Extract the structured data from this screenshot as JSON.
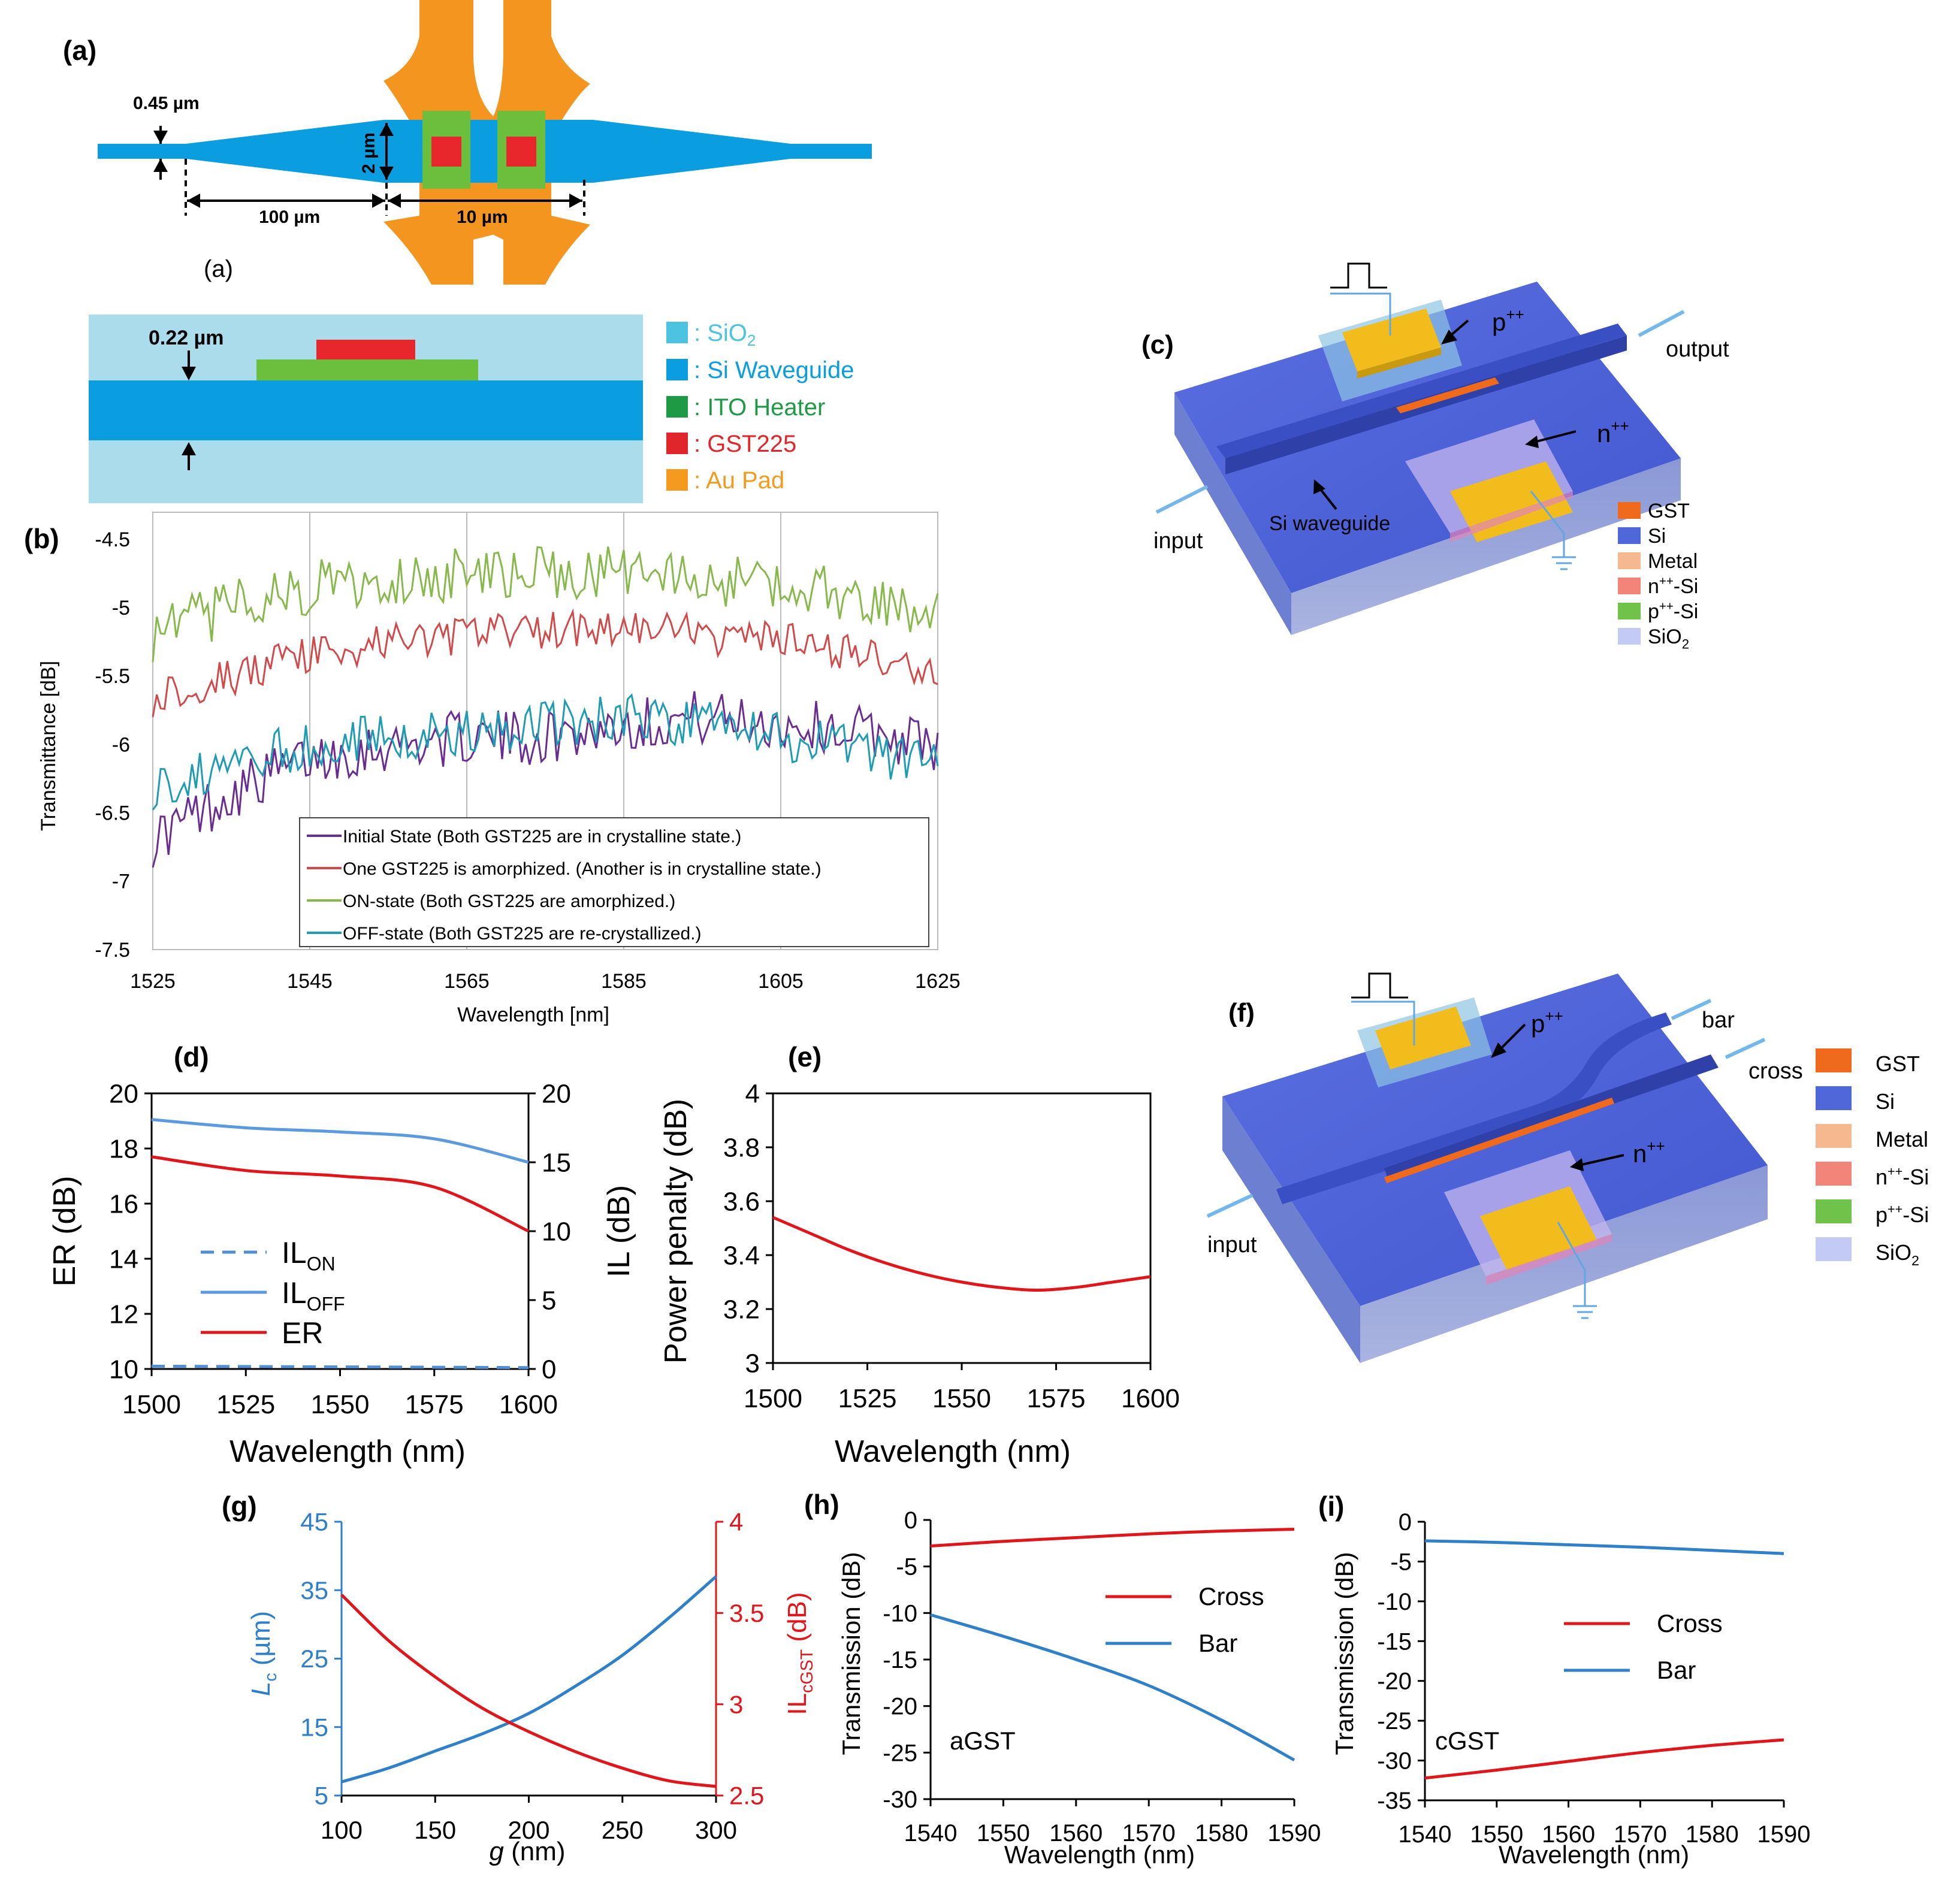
{
  "panel_a": {
    "label": "(a)",
    "sublabel": "(a)",
    "dims": {
      "width": "0.45 µm",
      "height": "2 µm",
      "taper": "100 µm",
      "gap": "10 µm",
      "thickness": "0.22 µm"
    },
    "legend": [
      {
        "label": ": SiO",
        "sub": "2",
        "color": "#4bc3e1"
      },
      {
        "label": ": Si Waveguide",
        "sub": "",
        "color": "#0a9ee0"
      },
      {
        "label": ": ITO Heater",
        "sub": "",
        "color": "#1e9a44"
      },
      {
        "label": ": GST225",
        "sub": "",
        "color": "#e0262b"
      },
      {
        "label": ": Au Pad",
        "sub": "",
        "color": "#f39a1f"
      }
    ],
    "colors": {
      "sio2": "#aadcec",
      "si": "#0a9ee0",
      "ito": "#6cbf3c",
      "gst": "#e8272c",
      "au": "#f3951f"
    }
  },
  "panel_c": {
    "label": "(c)",
    "annotations": {
      "p": "p",
      "n": "n",
      "output": "output",
      "input": "input",
      "waveguide": "Si waveguide"
    },
    "legend": [
      {
        "label": "GST",
        "sub": "",
        "color": "#ef6a1c"
      },
      {
        "label": "Si",
        "sub": "",
        "color": "#4f67d8"
      },
      {
        "label": "Metal",
        "sub": "",
        "color": "#f6b98f"
      },
      {
        "label": "n",
        "sub": "-Si",
        "color": "#f3847a"
      },
      {
        "label": "p",
        "sub": "-Si",
        "color": "#6fc24a"
      },
      {
        "label": "SiO",
        "sub": "2",
        "color": "#c3cbf4"
      }
    ]
  },
  "panel_f": {
    "label": "(f)",
    "annotations": {
      "p": "p",
      "n": "n",
      "bar": "bar",
      "cross": "cross",
      "input": "input"
    },
    "legend": [
      {
        "label": "GST",
        "sub": "",
        "color": "#ef6a1c"
      },
      {
        "label": "Si",
        "sub": "",
        "color": "#4f67d8"
      },
      {
        "label": "Metal",
        "sub": "",
        "color": "#f6b98f"
      },
      {
        "label": "n",
        "sub": "-Si",
        "color": "#f3847a"
      },
      {
        "label": "p",
        "sub": "-Si",
        "color": "#6fc24a"
      },
      {
        "label": "SiO",
        "sub": "2",
        "color": "#c3cbf4"
      }
    ]
  },
  "superscript": "++",
  "chart_data": [
    {
      "id": "b",
      "label": "(b)",
      "type": "line",
      "xlabel": "Wavelength [nm]",
      "ylabel": "Transmittance [dB]",
      "xlim": [
        1525,
        1625
      ],
      "ylim": [
        -7.5,
        -4.5
      ],
      "xticks": [
        1525,
        1545,
        1565,
        1585,
        1605,
        1625
      ],
      "yticks": [
        -4.5,
        -5,
        -5.5,
        -6,
        -6.5,
        -7,
        -7.5
      ],
      "series": [
        {
          "name": "Initial State (Both GST225 are in crystalline state.)",
          "color": "#6a2c91",
          "x": [
            1525,
            1535,
            1545,
            1555,
            1565,
            1575,
            1585,
            1595,
            1605,
            1615,
            1625
          ],
          "values": [
            -6.7,
            -6.35,
            -6.1,
            -6.0,
            -5.95,
            -5.95,
            -5.85,
            -5.8,
            -5.85,
            -5.9,
            -6.0
          ],
          "noise": 0.2
        },
        {
          "name": "One GST225 is amorphized. (Another is in crystalline state.)",
          "color": "#d04a4a",
          "x": [
            1525,
            1535,
            1545,
            1555,
            1565,
            1575,
            1585,
            1595,
            1605,
            1615,
            1625
          ],
          "values": [
            -5.65,
            -5.5,
            -5.35,
            -5.25,
            -5.2,
            -5.15,
            -5.15,
            -5.2,
            -5.25,
            -5.35,
            -5.5
          ],
          "noise": 0.15
        },
        {
          "name": "ON-state (Both GST225 are amorphized.)",
          "color": "#86b84a",
          "x": [
            1525,
            1535,
            1545,
            1555,
            1565,
            1575,
            1585,
            1595,
            1605,
            1615,
            1625
          ],
          "values": [
            -5.2,
            -5.0,
            -4.85,
            -4.8,
            -4.75,
            -4.75,
            -4.75,
            -4.8,
            -4.85,
            -4.9,
            -5.05
          ],
          "noise": 0.2
        },
        {
          "name": "OFF-state (Both GST225 are re-crystallized.)",
          "color": "#1e9bb5",
          "x": [
            1525,
            1535,
            1545,
            1555,
            1565,
            1575,
            1585,
            1595,
            1605,
            1615,
            1625
          ],
          "values": [
            -6.3,
            -6.15,
            -6.0,
            -5.95,
            -5.9,
            -5.85,
            -5.8,
            -5.85,
            -5.95,
            -6.05,
            -6.15
          ],
          "noise": 0.18
        }
      ]
    },
    {
      "id": "d",
      "label": "(d)",
      "type": "line",
      "xlabel": "Wavelength (nm)",
      "ylabel": "ER (dB)",
      "y2label": "IL (dB)",
      "xlim": [
        1500,
        1600
      ],
      "ylim": [
        10,
        20
      ],
      "y2lim": [
        0,
        20
      ],
      "xticks": [
        1500,
        1525,
        1550,
        1575,
        1600
      ],
      "yticks": [
        10,
        12,
        14,
        16,
        18,
        20
      ],
      "y2ticks": [
        0,
        5,
        10,
        15,
        20
      ],
      "series": [
        {
          "name": "IL",
          "sub": "ON",
          "axis": "right",
          "style": "dashed",
          "color": "#4f8fd6",
          "x": [
            1500,
            1600
          ],
          "values": [
            0.2,
            0.1
          ]
        },
        {
          "name": "IL",
          "sub": "OFF",
          "axis": "right",
          "style": "solid",
          "color": "#5c9ae0",
          "x": [
            1500,
            1525,
            1550,
            1575,
            1600
          ],
          "values": [
            18.1,
            17.5,
            17.2,
            16.7,
            15.0
          ]
        },
        {
          "name": "ER",
          "sub": "",
          "axis": "left",
          "style": "solid",
          "color": "#e0161b",
          "x": [
            1500,
            1525,
            1550,
            1575,
            1600
          ],
          "values": [
            17.7,
            17.2,
            17.0,
            16.6,
            15.0
          ]
        }
      ]
    },
    {
      "id": "e",
      "label": "(e)",
      "type": "line",
      "xlabel": "Wavelength (nm)",
      "ylabel": "Power penalty (dB)",
      "xlim": [
        1500,
        1600
      ],
      "ylim": [
        3,
        4
      ],
      "xticks": [
        1500,
        1525,
        1550,
        1575,
        1600
      ],
      "yticks": [
        3,
        3.2,
        3.4,
        3.6,
        3.8,
        4
      ],
      "series": [
        {
          "name": "Power penalty",
          "color": "#e0161b",
          "x": [
            1500,
            1510,
            1520,
            1530,
            1540,
            1550,
            1560,
            1570,
            1580,
            1590,
            1600
          ],
          "values": [
            3.54,
            3.48,
            3.42,
            3.37,
            3.33,
            3.3,
            3.28,
            3.27,
            3.28,
            3.3,
            3.32
          ]
        }
      ]
    },
    {
      "id": "g",
      "label": "(g)",
      "type": "line",
      "xlabel": "g (nm)",
      "ylabel": "L",
      "ylabel_sub": "c",
      "ylabel_unit": " (µm)",
      "y2label": "IL",
      "y2label_sub": "cGST",
      "y2label_unit": " (dB)",
      "xlim": [
        100,
        300
      ],
      "ylim": [
        5,
        45
      ],
      "y2lim": [
        2.5,
        4
      ],
      "xticks": [
        100,
        150,
        200,
        250,
        300
      ],
      "yticks": [
        5,
        15,
        25,
        35,
        45
      ],
      "y2ticks": [
        2.5,
        3,
        3.5,
        4
      ],
      "series": [
        {
          "name": "Lc",
          "axis": "left",
          "color": "#2f7fc9",
          "x": [
            100,
            125,
            150,
            175,
            200,
            225,
            250,
            275,
            300
          ],
          "values": [
            7,
            9,
            11.5,
            14,
            17,
            21,
            25.5,
            31,
            37
          ]
        },
        {
          "name": "ILcGST",
          "axis": "right",
          "color": "#e0161b",
          "x": [
            100,
            125,
            150,
            175,
            200,
            225,
            250,
            275,
            300
          ],
          "values": [
            3.6,
            3.35,
            3.15,
            2.98,
            2.85,
            2.74,
            2.65,
            2.58,
            2.55
          ]
        }
      ]
    },
    {
      "id": "h",
      "label": "(h)",
      "type": "line",
      "xlabel": "Wavelength (nm)",
      "ylabel": "Transmission (dB)",
      "annotation": "aGST",
      "xlim": [
        1540,
        1590
      ],
      "ylim": [
        -30,
        0
      ],
      "xticks": [
        1540,
        1550,
        1560,
        1570,
        1580,
        1590
      ],
      "yticks": [
        0,
        -5,
        -10,
        -15,
        -20,
        -25,
        -30
      ],
      "series": [
        {
          "name": "Cross",
          "color": "#e0161b",
          "x": [
            1540,
            1550,
            1560,
            1570,
            1580,
            1590
          ],
          "values": [
            -2.8,
            -2.3,
            -1.9,
            -1.5,
            -1.2,
            -1.0
          ]
        },
        {
          "name": "Bar",
          "color": "#2f7fc9",
          "x": [
            1540,
            1550,
            1560,
            1570,
            1580,
            1590
          ],
          "values": [
            -10.2,
            -12.5,
            -15.0,
            -17.8,
            -21.5,
            -25.8
          ]
        }
      ]
    },
    {
      "id": "i",
      "label": "(i)",
      "type": "line",
      "xlabel": "Wavelength (nm)",
      "ylabel": "Transmission (dB)",
      "annotation": "cGST",
      "xlim": [
        1540,
        1590
      ],
      "ylim": [
        -35,
        0
      ],
      "xticks": [
        1540,
        1550,
        1560,
        1570,
        1580,
        1590
      ],
      "yticks": [
        0,
        -5,
        -10,
        -15,
        -20,
        -25,
        -30,
        -35
      ],
      "series": [
        {
          "name": "Cross",
          "color": "#e0161b",
          "x": [
            1540,
            1550,
            1560,
            1570,
            1580,
            1590
          ],
          "values": [
            -32.2,
            -31.2,
            -30.1,
            -29.0,
            -28.1,
            -27.4
          ]
        },
        {
          "name": "Bar",
          "color": "#2f7fc9",
          "x": [
            1540,
            1550,
            1560,
            1570,
            1580,
            1590
          ],
          "values": [
            -2.4,
            -2.6,
            -2.9,
            -3.2,
            -3.6,
            -4.0
          ]
        }
      ]
    }
  ]
}
